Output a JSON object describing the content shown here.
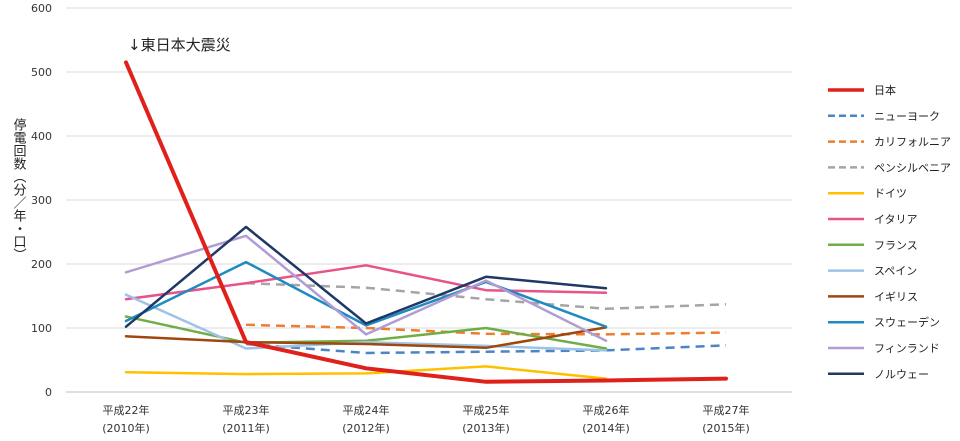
{
  "chart_data": {
    "type": "line",
    "ylabel": "停電回数（分／年・口）",
    "ylim": [
      0,
      600
    ],
    "yticks": [
      0,
      100,
      200,
      300,
      400,
      500,
      600
    ],
    "grid": true,
    "legend_position": "right",
    "categories": [
      {
        "line1": "平成22年",
        "line2": "(2010年)"
      },
      {
        "line1": "平成23年",
        "line2": "(2011年)"
      },
      {
        "line1": "平成24年",
        "line2": "(2012年)"
      },
      {
        "line1": "平成25年",
        "line2": "(2013年)"
      },
      {
        "line1": "平成26年",
        "line2": "(2014年)"
      },
      {
        "line1": "平成27年",
        "line2": "(2015年)"
      }
    ],
    "annotation": {
      "text": "↓東日本大震災",
      "category_index": 0
    },
    "series": [
      {
        "name": "日本",
        "color": "#e0211b",
        "dash": "solid",
        "width": 4,
        "values": [
          515,
          78,
          37,
          16,
          18,
          21
        ]
      },
      {
        "name": "ニューヨーク",
        "color": "#4a86c5",
        "dash": "dashed",
        "width": 2.5,
        "values": [
          null,
          75,
          61,
          63,
          65,
          73
        ]
      },
      {
        "name": "カリフォルニア",
        "color": "#ed7d31",
        "dash": "dashed",
        "width": 2.5,
        "values": [
          null,
          105,
          100,
          91,
          90,
          93
        ]
      },
      {
        "name": "ペンシルベニア",
        "color": "#a5a5a5",
        "dash": "dashed",
        "width": 2.5,
        "values": [
          null,
          170,
          163,
          145,
          130,
          137
        ]
      },
      {
        "name": "ドイツ",
        "color": "#ffc000",
        "dash": "solid",
        "width": 2.5,
        "values": [
          31,
          28,
          29,
          40,
          21,
          null
        ]
      },
      {
        "name": "イタリア",
        "color": "#e8548a",
        "dash": "solid",
        "width": 2.5,
        "values": [
          145,
          170,
          198,
          159,
          155,
          null
        ]
      },
      {
        "name": "フランス",
        "color": "#70ad47",
        "dash": "solid",
        "width": 2.5,
        "values": [
          118,
          77,
          80,
          100,
          68,
          null
        ]
      },
      {
        "name": "スペイン",
        "color": "#9dc3e6",
        "dash": "solid",
        "width": 2.5,
        "values": [
          152,
          68,
          78,
          72,
          65,
          null
        ]
      },
      {
        "name": "イギリス",
        "color": "#9e480e",
        "dash": "solid",
        "width": 2.5,
        "values": [
          87,
          78,
          75,
          69,
          101,
          null
        ]
      },
      {
        "name": "スウェーデン",
        "color": "#1f8bc0",
        "dash": "solid",
        "width": 2.5,
        "values": [
          111,
          203,
          104,
          172,
          102,
          null
        ]
      },
      {
        "name": "フィンランド",
        "color": "#b29cd4",
        "dash": "solid",
        "width": 2.5,
        "values": [
          187,
          244,
          90,
          174,
          80,
          null
        ]
      },
      {
        "name": "ノルウェー",
        "color": "#1f3864",
        "dash": "solid",
        "width": 2.5,
        "values": [
          102,
          258,
          107,
          180,
          162,
          null
        ]
      }
    ]
  }
}
